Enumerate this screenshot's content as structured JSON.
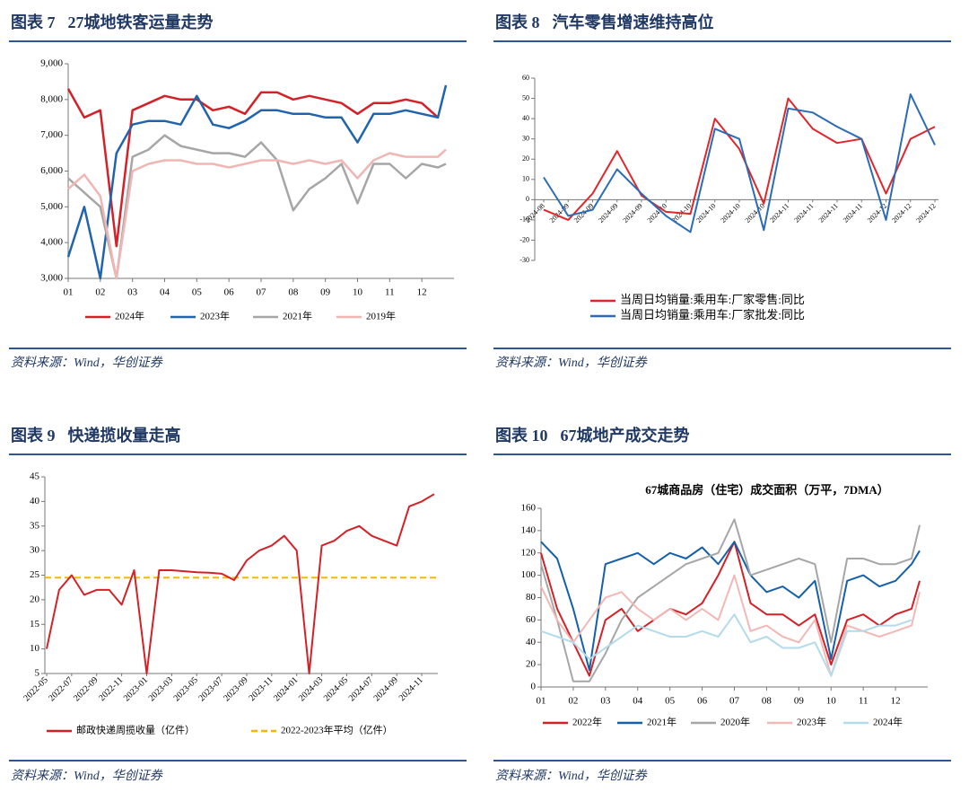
{
  "chart_data": [
    {
      "type": "line",
      "figure": "图表 7",
      "title": "27城地铁客运量走势",
      "source": "资料来源：Wind，华创证券",
      "x": [
        1,
        1.5,
        2,
        2.5,
        3,
        3.5,
        4,
        4.5,
        5,
        5.5,
        6,
        6.5,
        7,
        7.5,
        8,
        8.5,
        9,
        9.5,
        10,
        10.5,
        11,
        11.5,
        12,
        12.5,
        12.75
      ],
      "xlim": [
        1,
        13
      ],
      "xticks": [
        {
          "value": 1,
          "label": "01"
        },
        {
          "value": 2,
          "label": "02"
        },
        {
          "value": 3,
          "label": "03"
        },
        {
          "value": 4,
          "label": "04"
        },
        {
          "value": 5,
          "label": "05"
        },
        {
          "value": 6,
          "label": "06"
        },
        {
          "value": 7,
          "label": "07"
        },
        {
          "value": 8,
          "label": "08"
        },
        {
          "value": 9,
          "label": "09"
        },
        {
          "value": 10,
          "label": "10"
        },
        {
          "value": 11,
          "label": "11"
        },
        {
          "value": 12,
          "label": "12"
        }
      ],
      "ylim": [
        3000,
        9000
      ],
      "yticks": [
        {
          "value": 3000,
          "label": "3,000"
        },
        {
          "value": 4000,
          "label": "4,000"
        },
        {
          "value": 5000,
          "label": "5,000"
        },
        {
          "value": 6000,
          "label": "6,000"
        },
        {
          "value": 7000,
          "label": "7,000"
        },
        {
          "value": 8000,
          "label": "8,000"
        },
        {
          "value": 9000,
          "label": "9,000"
        }
      ],
      "legend": "bottom",
      "series": [
        {
          "name": "2024年",
          "color": "#d42027",
          "values": [
            8300,
            7500,
            7700,
            3900,
            7700,
            7900,
            8100,
            8000,
            8000,
            7700,
            7800,
            7600,
            8200,
            8200,
            8000,
            8100,
            8000,
            7900,
            7600,
            7900,
            7900,
            8000,
            7900,
            7500,
            null
          ]
        },
        {
          "name": "2023年",
          "color": "#1f64ad",
          "values": [
            3600,
            5000,
            3000,
            6500,
            7300,
            7400,
            7400,
            7300,
            8100,
            7300,
            7200,
            7400,
            7700,
            7700,
            7600,
            7600,
            7500,
            7500,
            6800,
            7600,
            7600,
            7700,
            7600,
            7500,
            8400
          ]
        },
        {
          "name": "2021年",
          "color": "#a6a6a6",
          "values": [
            5800,
            5400,
            5000,
            3000,
            6400,
            6600,
            7000,
            6700,
            6600,
            6500,
            6500,
            6400,
            6800,
            6300,
            4900,
            5500,
            5800,
            6200,
            5100,
            6200,
            6200,
            5800,
            6200,
            6100,
            6200
          ]
        },
        {
          "name": "2019年",
          "color": "#f0b6b4",
          "values": [
            5500,
            5900,
            5300,
            3000,
            6000,
            6200,
            6300,
            6300,
            6200,
            6200,
            6100,
            6200,
            6300,
            6300,
            6200,
            6300,
            6200,
            6300,
            5800,
            6300,
            6500,
            6400,
            6400,
            6400,
            6600
          ]
        }
      ]
    },
    {
      "type": "line",
      "figure": "图表 8",
      "title": "汽车零售增速维持高位",
      "source": "资料来源：Wind，华创证券",
      "categories": [
        "2024-08",
        "2024-09",
        "2024-09",
        "2024-09",
        "2024-09",
        "2024-10",
        "2024-10",
        "2024-10",
        "2024-10",
        "2024-10",
        "2024-11",
        "2024-11",
        "2024-11",
        "2024-11",
        "2024-12",
        "2024-12",
        "2024-12"
      ],
      "ylim": [
        -30,
        60
      ],
      "yticks": [
        -30,
        -20,
        -10,
        0,
        10,
        20,
        30,
        40,
        50,
        60
      ],
      "legend": "bottom",
      "series": [
        {
          "name": "当周日均销量:乘用车:厂家零售:同比",
          "color": "#e0262a",
          "values": [
            -5,
            -10,
            3,
            24,
            2,
            -6,
            -7,
            40,
            25,
            -2,
            50,
            35,
            28,
            30,
            3,
            30,
            36
          ]
        },
        {
          "name": "当周日均销量:乘用车:厂家批发:同比",
          "color": "#2b6cb5",
          "values": [
            11,
            -8,
            -5,
            15,
            3,
            -8,
            -16,
            35,
            30,
            -15,
            45,
            43,
            36,
            30,
            -10,
            52,
            27
          ]
        }
      ]
    },
    {
      "type": "line",
      "figure": "图表 9",
      "title": "快递揽收量走高",
      "source": "资料来源：Wind，华创证券",
      "categories": [
        "2022-05",
        null,
        "2022-07",
        null,
        "2022-09",
        null,
        "2022-11",
        null,
        "2023-01",
        null,
        "2023-03",
        null,
        "2023-05",
        null,
        "2023-07",
        null,
        "2023-09",
        null,
        "2023-11",
        null,
        "2024-01",
        null,
        "2024-03",
        null,
        "2024-05",
        null,
        "2024-07",
        null,
        "2024-09",
        null,
        "2024-11",
        null
      ],
      "ylim": [
        5,
        45
      ],
      "yticks": [
        5,
        10,
        15,
        20,
        25,
        30,
        35,
        40,
        45
      ],
      "legend": "bottom",
      "series": [
        {
          "name": "邮政快递周揽收量（亿件）",
          "color": "#d42027",
          "values": [
            10,
            22,
            25,
            21,
            22,
            22,
            19,
            26,
            5,
            26,
            26,
            25.8,
            25.6,
            25.5,
            25.3,
            24,
            28,
            30,
            31,
            33,
            30,
            5,
            31,
            32,
            34,
            35,
            33,
            32,
            31,
            39,
            40,
            41.5
          ]
        }
      ],
      "average": {
        "name": "2022-2023年平均（亿件）",
        "color": "#f5b800",
        "value": 24.5
      }
    },
    {
      "type": "line",
      "figure": "图表 10",
      "title": "67城地产成交走势",
      "subtitle": "67城商品房（住宅）成交面积（万平，7DMA）",
      "source": "资料来源：Wind，华创证券",
      "x": [
        1,
        1.5,
        2,
        2.5,
        3,
        3.5,
        4,
        4.5,
        5,
        5.5,
        6,
        6.5,
        7,
        7.5,
        8,
        8.5,
        9,
        9.5,
        10,
        10.5,
        11,
        11.5,
        12,
        12.5,
        12.75
      ],
      "xlim": [
        1,
        13
      ],
      "xticks": [
        {
          "value": 1,
          "label": "01"
        },
        {
          "value": 2,
          "label": "02"
        },
        {
          "value": 3,
          "label": "03"
        },
        {
          "value": 4,
          "label": "04"
        },
        {
          "value": 5,
          "label": "05"
        },
        {
          "value": 6,
          "label": "06"
        },
        {
          "value": 7,
          "label": "07"
        },
        {
          "value": 8,
          "label": "08"
        },
        {
          "value": 9,
          "label": "09"
        },
        {
          "value": 10,
          "label": "10"
        },
        {
          "value": 11,
          "label": "11"
        },
        {
          "value": 12,
          "label": "12"
        }
      ],
      "ylim": [
        0,
        160
      ],
      "yticks": [
        0,
        20,
        40,
        60,
        80,
        100,
        120,
        140,
        160
      ],
      "legend": "bottom",
      "series": [
        {
          "name": "2022年",
          "color": "#d42027",
          "values": [
            120,
            70,
            40,
            10,
            60,
            70,
            50,
            60,
            70,
            65,
            75,
            100,
            130,
            75,
            65,
            65,
            55,
            65,
            20,
            60,
            65,
            55,
            65,
            70,
            95
          ]
        },
        {
          "name": "2021年",
          "color": "#1560a8",
          "values": [
            130,
            115,
            70,
            15,
            110,
            115,
            120,
            110,
            120,
            115,
            125,
            110,
            130,
            100,
            85,
            90,
            80,
            95,
            25,
            95,
            100,
            90,
            95,
            110,
            122
          ]
        },
        {
          "name": "2020年",
          "color": "#a6a6a6",
          "values": [
            110,
            60,
            5,
            5,
            30,
            60,
            80,
            90,
            100,
            110,
            115,
            120,
            150,
            100,
            105,
            110,
            115,
            110,
            40,
            115,
            115,
            110,
            110,
            115,
            145
          ]
        },
        {
          "name": "2023年",
          "color": "#f2b8b5",
          "values": [
            90,
            60,
            40,
            60,
            80,
            85,
            70,
            60,
            70,
            60,
            70,
            60,
            100,
            50,
            55,
            45,
            40,
            60,
            10,
            55,
            50,
            45,
            50,
            55,
            85
          ]
        },
        {
          "name": "2024年",
          "color": "#b4dbea",
          "values": [
            50,
            45,
            40,
            25,
            35,
            45,
            55,
            50,
            45,
            45,
            50,
            45,
            65,
            40,
            45,
            35,
            35,
            40,
            10,
            50,
            50,
            55,
            55,
            60,
            null
          ]
        }
      ]
    }
  ]
}
